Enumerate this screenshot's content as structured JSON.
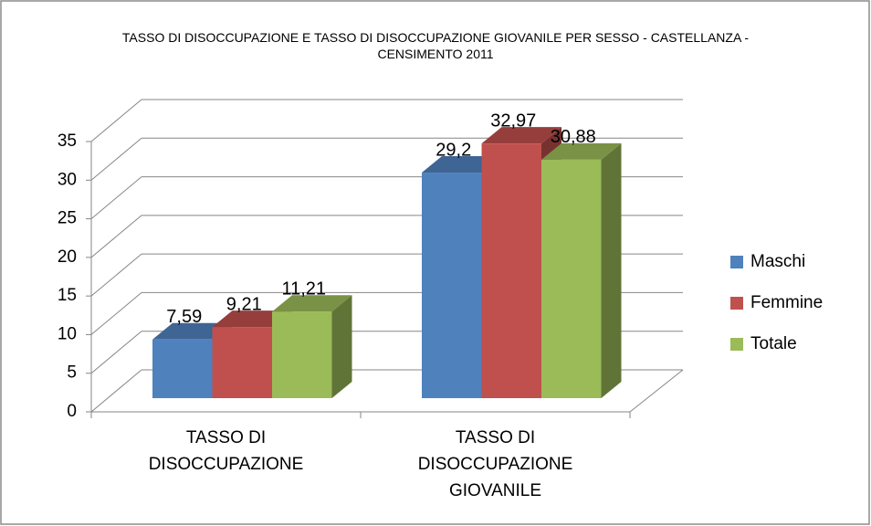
{
  "chart_data": {
    "type": "bar3d",
    "title": "TASSO DI DISOCCUPAZIONE E TASSO DI DISOCCUPAZIONE GIOVANILE PER SESSO - CASTELLANZA - CENSIMENTO 2011",
    "categories": [
      "TASSO DI DISOCCUPAZIONE",
      "TASSO DI DISOCCUPAZIONE GIOVANILE"
    ],
    "series": [
      {
        "name": "Maschi",
        "color": "#4f81bd",
        "values": [
          7.59,
          29.2
        ],
        "value_labels": [
          "7,59",
          "29,2"
        ]
      },
      {
        "name": "Femmine",
        "color": "#c0504d",
        "values": [
          9.21,
          32.97
        ],
        "value_labels": [
          "9,21",
          "32,97"
        ]
      },
      {
        "name": "Totale",
        "color": "#9bbb59",
        "values": [
          11.21,
          30.88
        ],
        "value_labels": [
          "11,21",
          "30,88"
        ]
      }
    ],
    "ylim": [
      0,
      35
    ],
    "yticks": [
      0,
      5,
      10,
      15,
      20,
      25,
      30,
      35
    ],
    "grid": true,
    "legend": "right"
  }
}
